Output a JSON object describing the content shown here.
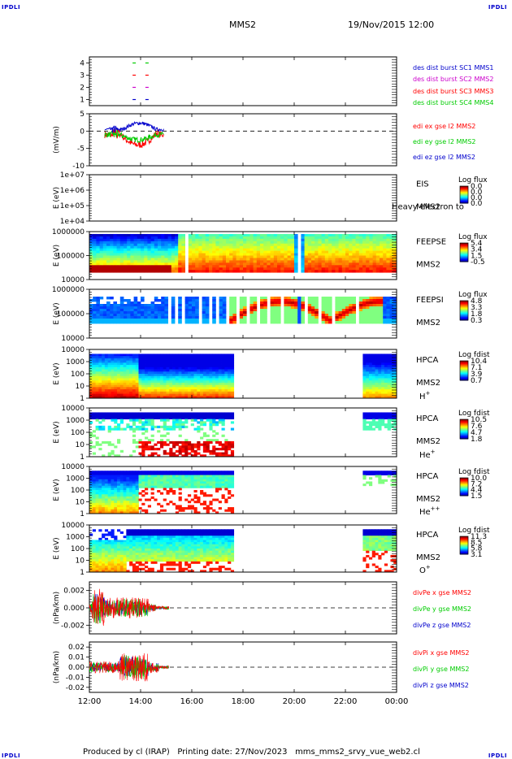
{
  "header": {
    "corner_label": "IPDLI",
    "spacecraft": "MMS2",
    "datetime": "19/Nov/2015 12:00"
  },
  "footer": {
    "produced_by": "Produced by cl (IRAP)",
    "printing_date": "Printing date: 27/Nov/2023",
    "filename": "mms_mms2_srvy_vue_web2.cl"
  },
  "time_axis": {
    "ticks": [
      "12:00",
      "14:00",
      "16:00",
      "18:00",
      "20:00",
      "22:00",
      "00:00"
    ],
    "range_hours": [
      12,
      24
    ]
  },
  "colors": {
    "red": "#ff0000",
    "green": "#00cc00",
    "blue": "#0000ff",
    "magenta": "#cc00cc",
    "legend_blue": "#0000cc",
    "legend_green": "#00cc00",
    "legend_red": "#ff0000",
    "legend_magenta": "#cc00cc"
  },
  "chart_data": [
    {
      "type": "scatter",
      "panel": "burst",
      "ylim": [
        0.5,
        4.5
      ],
      "yticks": [
        "1",
        "2",
        "3",
        "4"
      ],
      "series": [
        {
          "name": "des dist burst SC1 MMS1",
          "color": "#0000cc",
          "y": 1,
          "x": [
            13.75,
            14.25
          ]
        },
        {
          "name": "des dist burst SC2 MMS2",
          "color": "#cc00cc",
          "y": 2,
          "x": [
            13.75,
            14.25
          ]
        },
        {
          "name": "des dist burst SC3 MMS3",
          "color": "#ff0000",
          "y": 3,
          "x": [
            13.75,
            14.25
          ]
        },
        {
          "name": "des dist burst SC4 MMS4",
          "color": "#00cc00",
          "y": 4,
          "x": [
            13.75,
            14.25
          ]
        }
      ]
    },
    {
      "type": "line",
      "panel": "edi",
      "ylabel": "(mV/m)",
      "ylim": [
        -10,
        5
      ],
      "yticks": [
        "5",
        "0",
        "-5",
        "-10"
      ],
      "series": [
        {
          "name": "edi ex gse l2 MMS2",
          "color": "#ff0000"
        },
        {
          "name": "edi ey gse l2 MMS2",
          "color": "#00cc00"
        },
        {
          "name": "edi ez gse l2 MMS2",
          "color": "#0000cc"
        }
      ],
      "x_range": [
        12.6,
        14.9
      ]
    },
    {
      "type": "heatmap",
      "panel": "eis",
      "ylabel": "E (eV)",
      "yticks": [
        "1e+07",
        "1e+06",
        "1e+05",
        "1e+04"
      ],
      "instrument": "EIS",
      "spacecraft": "MMS2",
      "overlay_text": "Heavy electron to",
      "colorbar": {
        "title": "Log flux",
        "ticks": [
          "0.0",
          "0.0",
          "0.0",
          "0.0"
        ]
      }
    },
    {
      "type": "heatmap",
      "panel": "feepse",
      "ylabel": "E (eV)",
      "yticks": [
        "1000000",
        "100000",
        "10000"
      ],
      "instrument": "FEEPSE",
      "spacecraft": "MMS2",
      "colorbar": {
        "title": "Log flux",
        "ticks": [
          "5.4",
          "3.4",
          "1.5",
          "-0.5"
        ]
      }
    },
    {
      "type": "heatmap",
      "panel": "feepsi",
      "ylabel": "E (eV)",
      "yticks": [
        "1000000",
        "100000",
        "10000"
      ],
      "instrument": "FEEPSI",
      "spacecraft": "MMS2",
      "colorbar": {
        "title": "Log flux",
        "ticks": [
          "4.8",
          "3.3",
          "1.8",
          "0.3"
        ]
      }
    },
    {
      "type": "heatmap",
      "panel": "hpca_h",
      "ylabel": "E (eV)",
      "yticks": [
        "10000",
        "1000",
        "100",
        "10",
        "1"
      ],
      "instrument": "HPCA",
      "spacecraft": "MMS2",
      "species_base": "H",
      "species_sup": "+",
      "colorbar": {
        "title": "Log fdist",
        "ticks": [
          "10.4",
          "7.1",
          "3.9",
          "0.7"
        ]
      }
    },
    {
      "type": "heatmap",
      "panel": "hpca_he",
      "ylabel": "E (eV)",
      "yticks": [
        "10000",
        "1000",
        "100",
        "10",
        "1"
      ],
      "instrument": "HPCA",
      "spacecraft": "MMS2",
      "species_base": "He",
      "species_sup": "+",
      "colorbar": {
        "title": "Log fdist",
        "ticks": [
          "10.5",
          "7.6",
          "4.7",
          "1.8"
        ]
      }
    },
    {
      "type": "heatmap",
      "panel": "hpca_hepp",
      "ylabel": "E (eV)",
      "yticks": [
        "10000",
        "1000",
        "100",
        "10",
        "1"
      ],
      "instrument": "HPCA",
      "spacecraft": "MMS2",
      "species_base": "He",
      "species_sup": "++",
      "colorbar": {
        "title": "Log fdist",
        "ticks": [
          "10.0",
          "7.2",
          "4.4",
          "1.5"
        ]
      }
    },
    {
      "type": "heatmap",
      "panel": "hpca_o",
      "ylabel": "E (eV)",
      "yticks": [
        "10000",
        "1000",
        "100",
        "10",
        "1"
      ],
      "instrument": "HPCA",
      "spacecraft": "MMS2",
      "species_base": "O",
      "species_sup": "+",
      "colorbar": {
        "title": "Log fdist",
        "ticks": [
          "11.3",
          "8.5",
          "5.8",
          "3.1"
        ]
      }
    },
    {
      "type": "line",
      "panel": "divpe",
      "ylabel": "(nPa/km)",
      "ylim": [
        -0.003,
        0.003
      ],
      "yticks": [
        "0.002",
        "0.000",
        "-0.002"
      ],
      "series": [
        {
          "name": "divPe x gse MMS2",
          "color": "#ff0000"
        },
        {
          "name": "divPe y gse MMS2",
          "color": "#00cc00"
        },
        {
          "name": "divPe z gse MMS2",
          "color": "#0000cc"
        }
      ],
      "x_range": [
        12.0,
        15.1
      ]
    },
    {
      "type": "line",
      "panel": "divpi",
      "ylabel": "(nPa/km)",
      "ylim": [
        -0.025,
        0.025
      ],
      "yticks": [
        "0.02",
        "0.01",
        "0.00",
        "-0.01",
        "-0.02"
      ],
      "series": [
        {
          "name": "divPi x gse MMS2",
          "color": "#ff0000"
        },
        {
          "name": "divPi y gse MMS2",
          "color": "#00cc00"
        },
        {
          "name": "divPi z gse MMS2",
          "color": "#0000cc"
        }
      ],
      "x_range": [
        12.0,
        15.1
      ]
    }
  ]
}
